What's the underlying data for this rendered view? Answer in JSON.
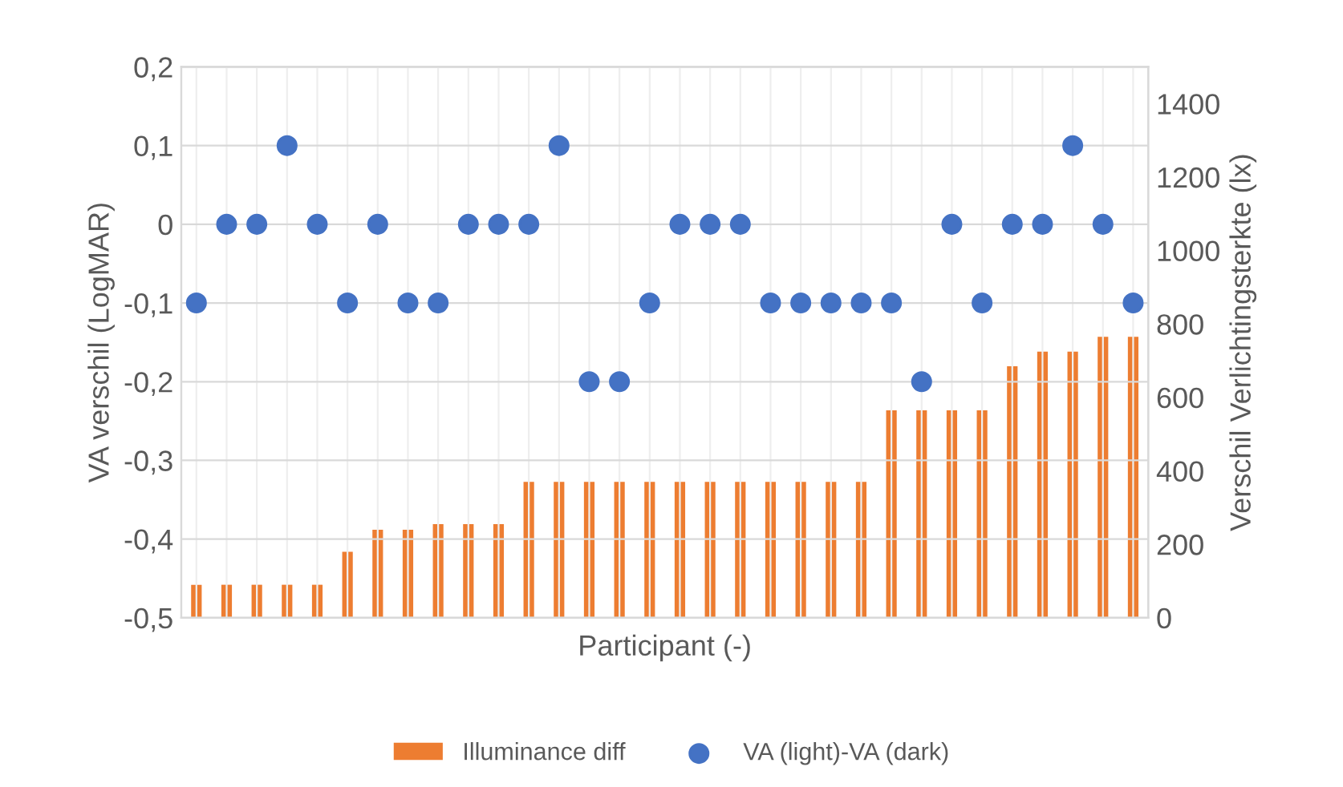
{
  "chart_data": {
    "type": "bar",
    "xlabel": "Participant (-)",
    "ylabel": "VA verschil (LogMAR)",
    "y2label": "Verschil Verlichtingsterkte (lx)",
    "categories": [
      null,
      null,
      null,
      null,
      null,
      null,
      null,
      null,
      null,
      null,
      null,
      null,
      null,
      null,
      null,
      null,
      null,
      null,
      null,
      null,
      null,
      null,
      null,
      null,
      null,
      null,
      null,
      null,
      null,
      null,
      null,
      null
    ],
    "series": [
      {
        "name": "Illuminance diff",
        "axis": "y2",
        "color": "#ed7d31",
        "values": [
          90,
          90,
          90,
          90,
          90,
          180,
          240,
          240,
          255,
          255,
          255,
          370,
          370,
          370,
          370,
          370,
          370,
          370,
          370,
          370,
          370,
          370,
          370,
          565,
          565,
          565,
          565,
          685,
          725,
          725,
          765,
          765
        ]
      },
      {
        "name": "VA (light)-VA (dark)",
        "type": "scatter",
        "axis": "y",
        "color": "#4472c4",
        "marker": "circle",
        "values": [
          -0.1,
          0,
          0,
          0.1,
          0,
          -0.1,
          0,
          -0.1,
          -0.1,
          0,
          0,
          0,
          0.1,
          -0.2,
          -0.2,
          -0.1,
          0,
          0,
          0,
          -0.1,
          -0.1,
          -0.1,
          -0.1,
          -0.1,
          -0.2,
          0,
          -0.1,
          0,
          0,
          0.1,
          0,
          -0.1
        ]
      }
    ],
    "ylim": [
      -0.5,
      0.2
    ],
    "yticks": [
      {
        "value": -0.5,
        "label": "-0,5"
      },
      {
        "value": -0.4,
        "label": "-0,4"
      },
      {
        "value": -0.3,
        "label": "-0,3"
      },
      {
        "value": -0.2,
        "label": "-0,2"
      },
      {
        "value": -0.1,
        "label": "-0,1"
      },
      0,
      {
        "value": 0.1,
        "label": "0,1"
      },
      {
        "value": 0.2,
        "label": "0,2"
      }
    ],
    "y2lim": [
      0,
      1500
    ],
    "y2ticks": [
      0,
      200,
      400,
      600,
      800,
      1000,
      1200,
      1400
    ],
    "grid": true,
    "legend": "bottom"
  }
}
